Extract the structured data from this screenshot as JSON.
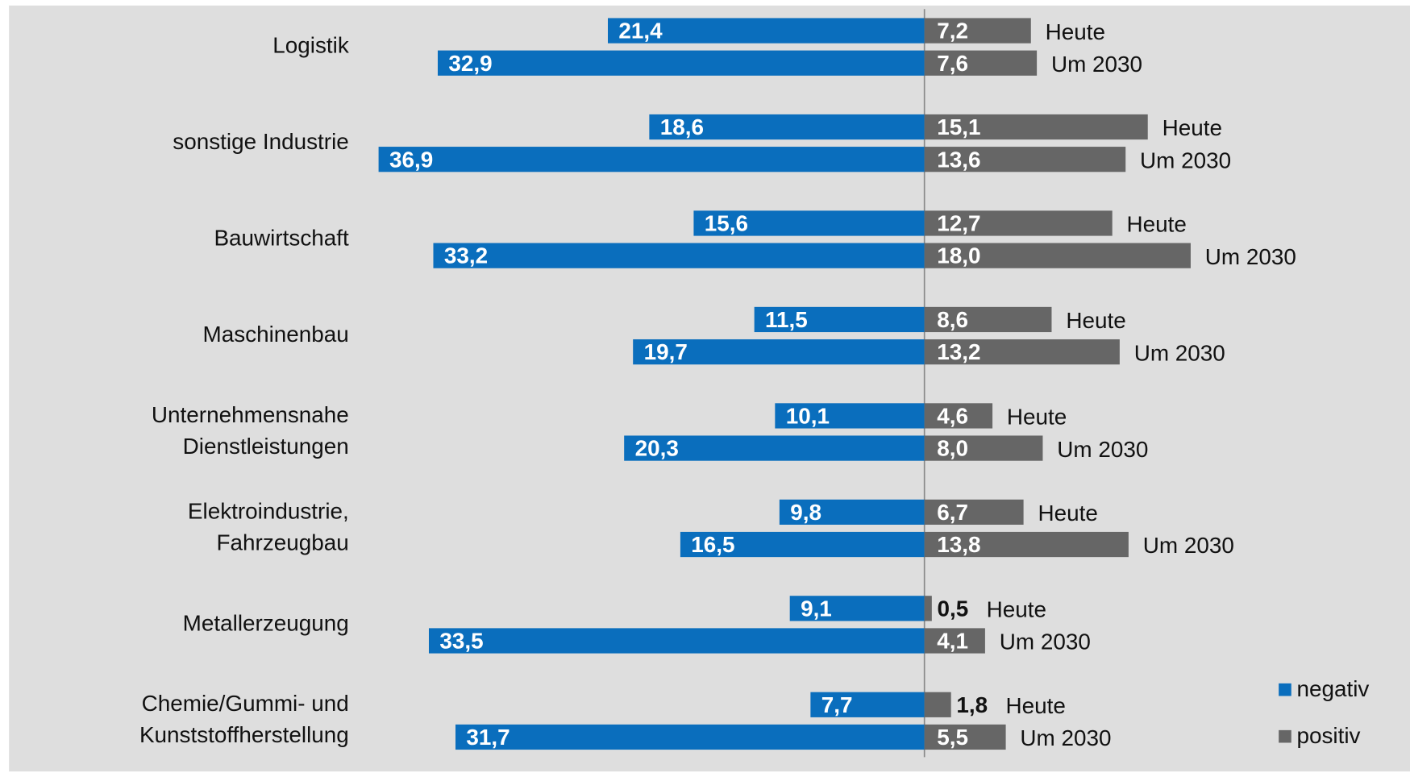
{
  "chart_data": {
    "type": "diverging-bar",
    "categories": [
      [
        "Logistik"
      ],
      [
        "sonstige Industrie"
      ],
      [
        "Bauwirtschaft"
      ],
      [
        "Maschinenbau"
      ],
      [
        "Unternehmensnahe",
        "Dienstleistungen"
      ],
      [
        "Elektroindustrie,",
        "Fahrzeugbau"
      ],
      [
        "Metallerzeugung"
      ],
      [
        "Chemie/Gummi- und",
        "Kunststoffherstellung"
      ]
    ],
    "periods": [
      "Heute",
      "Um 2030"
    ],
    "series": [
      {
        "name": "negativ",
        "color": "#0a6ebd",
        "side": "left",
        "values": [
          [
            21.4,
            32.9
          ],
          [
            18.6,
            36.9
          ],
          [
            15.6,
            33.2
          ],
          [
            11.5,
            19.7
          ],
          [
            10.1,
            20.3
          ],
          [
            9.8,
            16.5
          ],
          [
            9.1,
            33.5
          ],
          [
            7.7,
            31.7
          ]
        ],
        "value_labels": [
          [
            "21,4",
            "32,9"
          ],
          [
            "18,6",
            "36,9"
          ],
          [
            "15,6",
            "33,2"
          ],
          [
            "11,5",
            "19,7"
          ],
          [
            "10,1",
            "20,3"
          ],
          [
            "9,8",
            "16,5"
          ],
          [
            "9,1",
            "33,5"
          ],
          [
            "7,7",
            "31,7"
          ]
        ]
      },
      {
        "name": "positiv",
        "color": "#666666",
        "side": "right",
        "values": [
          [
            7.2,
            7.6
          ],
          [
            15.1,
            13.6
          ],
          [
            12.7,
            18.0
          ],
          [
            8.6,
            13.2
          ],
          [
            4.6,
            8.0
          ],
          [
            6.7,
            13.8
          ],
          [
            0.5,
            4.1
          ],
          [
            1.8,
            5.5
          ]
        ],
        "value_labels": [
          [
            "7,2",
            "7,6"
          ],
          [
            "15,1",
            "13,6"
          ],
          [
            "12,7",
            "18,0"
          ],
          [
            "8,6",
            "13,2"
          ],
          [
            "4,6",
            "8,0"
          ],
          [
            "6,7",
            "13,8"
          ],
          [
            "0,5",
            "4,1"
          ],
          [
            "1,8",
            "5,5"
          ]
        ]
      }
    ],
    "legend": "bottom-right"
  }
}
